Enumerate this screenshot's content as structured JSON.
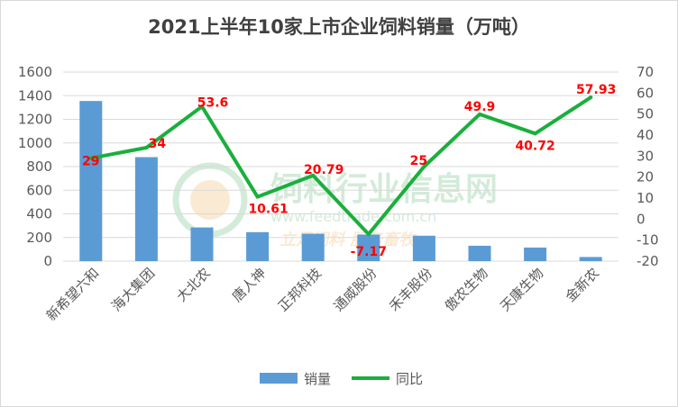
{
  "chart_data": {
    "type": "bar+line",
    "title": "2021上半年10家上市企业饲料销量（万吨）",
    "categories": [
      "新希望六和",
      "海大集团",
      "大北农",
      "唐人神",
      "正邦科技",
      "通威股份",
      "禾丰股份",
      "傲农生物",
      "天康生物",
      "金新农"
    ],
    "series": [
      {
        "name": "销量",
        "type": "bar",
        "axis": "left",
        "color": "#5b9bd5",
        "values": [
          1355,
          880,
          285,
          245,
          232,
          225,
          215,
          130,
          115,
          35
        ]
      },
      {
        "name": "同比",
        "type": "line",
        "axis": "right",
        "color": "#1aaf3c",
        "values": [
          29,
          34,
          53.6,
          10.61,
          20.79,
          -7.17,
          25,
          49.9,
          40.72,
          57.93
        ],
        "labels": [
          "29",
          "34",
          "53.6",
          "10.61",
          "20.79",
          "-7.17",
          "25",
          "49.9",
          "40.72",
          "57.93"
        ]
      }
    ],
    "y_left": {
      "min": 0,
      "max": 1600,
      "ticks": [
        0,
        200,
        400,
        600,
        800,
        1000,
        1200,
        1400,
        1600
      ]
    },
    "y_right": {
      "min": -20,
      "max": 70,
      "ticks": [
        -20,
        -10,
        0,
        10,
        20,
        30,
        40,
        50,
        60,
        70
      ]
    },
    "legend": {
      "position": "bottom"
    },
    "gridlines": true,
    "label_color": "#ff0000"
  },
  "watermark": {
    "text": "饲料行业信息网",
    "url": "www.feedtrade.com.cn",
    "slogan": "立足饲料 服务畜牧"
  }
}
